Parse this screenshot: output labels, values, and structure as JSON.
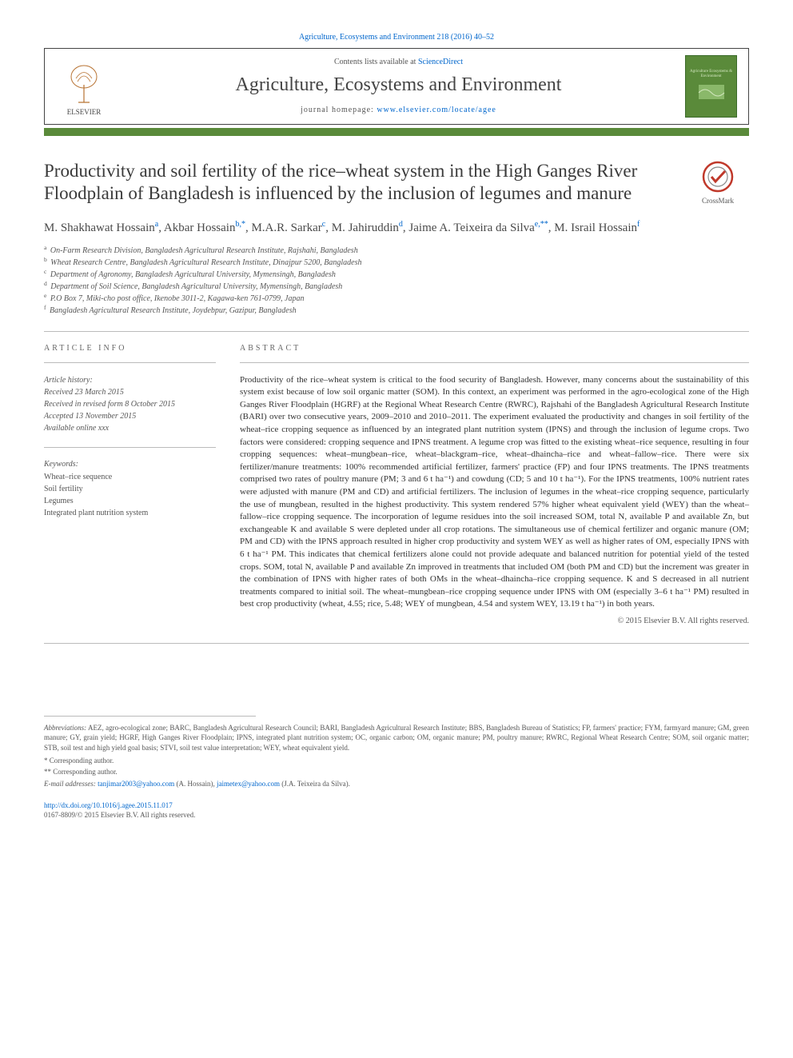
{
  "citation": "Agriculture, Ecosystems and Environment 218 (2016) 40–52",
  "header": {
    "contents_prefix": "Contents lists available at ",
    "contents_link": "ScienceDirect",
    "journal_name": "Agriculture, Ecosystems and Environment",
    "homepage_prefix": "journal homepage: ",
    "homepage_link": "www.elsevier.com/locate/agee",
    "publisher_logo_text": "ELSEVIER",
    "cover_text_top": "Agriculture Ecosystems & Environment"
  },
  "crossmark_label": "CrossMark",
  "title": "Productivity and soil fertility of the rice–wheat system in the High Ganges River Floodplain of Bangladesh is influenced by the inclusion of legumes and manure",
  "authors_html": "M. Shakhawat Hossain<sup>a</sup>, Akbar Hossain<sup>b,*</sup>, M.A.R. Sarkar<sup>c</sup>, M. Jahiruddin<sup>d</sup>, Jaime A. Teixeira da Silva<sup>e,**</sup>, M. Israil Hossain<sup>f</sup>",
  "affiliations": [
    "a On-Farm Research Division, Bangladesh Agricultural Research Institute, Rajshahi, Bangladesh",
    "b Wheat Research Centre, Bangladesh Agricultural Research Institute, Dinajpur 5200, Bangladesh",
    "c Department of Agronomy, Bangladesh Agricultural University, Mymensingh, Bangladesh",
    "d Department of Soil Science, Bangladesh Agricultural University, Mymensingh, Bangladesh",
    "e P.O Box 7, Miki-cho post office, Ikenobe 3011-2, Kagawa-ken 761-0799, Japan",
    "f Bangladesh Agricultural Research Institute, Joydebpur, Gazipur, Bangladesh"
  ],
  "article_info_h": "ARTICLE INFO",
  "abstract_h": "ABSTRACT",
  "history_label": "Article history:",
  "history": [
    "Received 23 March 2015",
    "Received in revised form 8 October 2015",
    "Accepted 13 November 2015",
    "Available online xxx"
  ],
  "keywords_label": "Keywords:",
  "keywords": [
    "Wheat–rice sequence",
    "Soil fertility",
    "Legumes",
    "Integrated plant nutrition system"
  ],
  "abstract": "Productivity of the rice–wheat system is critical to the food security of Bangladesh. However, many concerns about the sustainability of this system exist because of low soil organic matter (SOM). In this context, an experiment was performed in the agro-ecological zone of the High Ganges River Floodplain (HGRF) at the Regional Wheat Research Centre (RWRC), Rajshahi of the Bangladesh Agricultural Research Institute (BARI) over two consecutive years, 2009–2010 and 2010–2011. The experiment evaluated the productivity and changes in soil fertility of the wheat–rice cropping sequence as influenced by an integrated plant nutrition system (IPNS) and through the inclusion of legume crops. Two factors were considered: cropping sequence and IPNS treatment. A legume crop was fitted to the existing wheat–rice sequence, resulting in four cropping sequences: wheat–mungbean–rice, wheat–blackgram–rice, wheat–dhaincha–rice and wheat–fallow–rice. There were six fertilizer/manure treatments: 100% recommended artificial fertilizer, farmers' practice (FP) and four IPNS treatments. The IPNS treatments comprised two rates of poultry manure (PM; 3 and 6 t ha⁻¹) and cowdung (CD; 5 and 10 t ha⁻¹). For the IPNS treatments, 100% nutrient rates were adjusted with manure (PM and CD) and artificial fertilizers. The inclusion of legumes in the wheat–rice cropping sequence, particularly the use of mungbean, resulted in the highest productivity. This system rendered 57% higher wheat equivalent yield (WEY) than the wheat–fallow–rice cropping sequence. The incorporation of legume residues into the soil increased SOM, total N, available P and available Zn, but exchangeable K and available S were depleted under all crop rotations. The simultaneous use of chemical fertilizer and organic manure (OM; PM and CD) with the IPNS approach resulted in higher crop productivity and system WEY as well as higher rates of OM, especially IPNS with 6 t ha⁻¹ PM. This indicates that chemical fertilizers alone could not provide adequate and balanced nutrition for potential yield of the tested crops. SOM, total N, available P and available Zn improved in treatments that included OM (both PM and CD) but the increment was greater in the combination of IPNS with higher rates of both OMs in the wheat–dhaincha–rice cropping sequence. K and S decreased in all nutrient treatments compared to initial soil. The wheat–mungbean–rice cropping sequence under IPNS with OM (especially 3–6 t ha⁻¹ PM) resulted in best crop productivity (wheat, 4.55; rice, 5.48; WEY of mungbean, 4.54 and system WEY, 13.19 t ha⁻¹) in both years.",
  "copyright": "© 2015 Elsevier B.V. All rights reserved.",
  "abbrev_label": "Abbreviations:",
  "abbrev": " AEZ, agro-ecological zone; BARC, Bangladesh Agricultural Research Council; BARI, Bangladesh Agricultural Research Institute; BBS, Bangladesh Bureau of Statistics; FP, farmers' practice; FYM, farmyard manure; GM, green manure; GY, grain yield; HGRF, High Ganges River Floodplain; IPNS, integrated plant nutrition system; OC, organic carbon; OM, organic manure; PM, poultry manure; RWRC, Regional Wheat Research Centre; SOM, soil organic matter; STB, soil test and high yield goal basis; STVI, soil test value interpretation; WEY, wheat equivalent yield.",
  "corresponding": [
    "* Corresponding author.",
    "** Corresponding author."
  ],
  "emails_label": "E-mail addresses:",
  "emails": [
    {
      "addr": "tanjimar2003@yahoo.com",
      "who": " (A. Hossain), "
    },
    {
      "addr": "jaimetex@yahoo.com",
      "who": " (J.A. Teixeira da Silva)."
    }
  ],
  "doi": "http://dx.doi.org/10.1016/j.agee.2015.11.017",
  "issn_line": "0167-8809/© 2015 Elsevier B.V. All rights reserved.",
  "colors": {
    "link": "#0066cc",
    "accent": "#5a8a3a",
    "text": "#333333",
    "muted": "#555555"
  }
}
